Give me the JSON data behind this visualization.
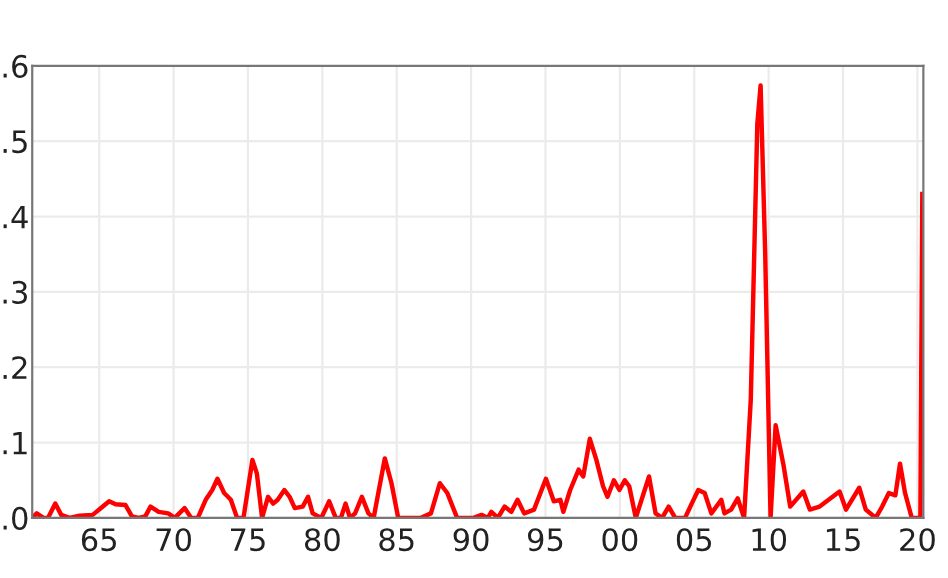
{
  "chart_data": {
    "type": "line",
    "grid": true,
    "line_style": "solid",
    "marker": "none",
    "xlim": [
      1960.5,
      2020.4
    ],
    "ylim": [
      0,
      0.6
    ],
    "xticks": [
      {
        "value": 1965,
        "label": "65"
      },
      {
        "value": 1970,
        "label": "70"
      },
      {
        "value": 1975,
        "label": "75"
      },
      {
        "value": 1980,
        "label": "80"
      },
      {
        "value": 1985,
        "label": "85"
      },
      {
        "value": 1990,
        "label": "90"
      },
      {
        "value": 1995,
        "label": "95"
      },
      {
        "value": 2000,
        "label": "00"
      },
      {
        "value": 2005,
        "label": "05"
      },
      {
        "value": 2010,
        "label": "10"
      },
      {
        "value": 2015,
        "label": "15"
      },
      {
        "value": 2020,
        "label": "20"
      }
    ],
    "yticks": [
      {
        "value": 0,
        "label": ".0"
      },
      {
        "value": 0.1,
        "label": ".1"
      },
      {
        "value": 0.2,
        "label": ".2"
      },
      {
        "value": 0.3,
        "label": ".3"
      },
      {
        "value": 0.4,
        "label": ".4"
      },
      {
        "value": 0.5,
        "label": ".5"
      },
      {
        "value": 0.6,
        "label": ".6"
      }
    ],
    "series": [
      {
        "color": "#ff0000",
        "x": [
          1960.5,
          1960.8,
          1961.25,
          1961.56,
          1962.05,
          1962.45,
          1963.0,
          1963.68,
          1964.56,
          1965.0,
          1965.67,
          1966.1,
          1966.77,
          1967.2,
          1967.65,
          1968.1,
          1968.45,
          1969.0,
          1969.64,
          1970.08,
          1970.74,
          1971.19,
          1971.63,
          1972.16,
          1972.6,
          1972.95,
          1973.4,
          1973.85,
          1974.27,
          1974.7,
          1975.3,
          1975.6,
          1975.95,
          1976.35,
          1976.7,
          1977.0,
          1977.45,
          1977.8,
          1978.15,
          1978.68,
          1979.04,
          1979.35,
          1979.93,
          1980.46,
          1980.9,
          1981.25,
          1981.56,
          1981.86,
          1982.2,
          1982.66,
          1983.1,
          1983.45,
          1984.2,
          1984.65,
          1985.1,
          1986.63,
          1987.3,
          1987.9,
          1988.4,
          1989.06,
          1990.17,
          1990.7,
          1991.13,
          1991.36,
          1991.8,
          1992.25,
          1992.7,
          1993.12,
          1993.57,
          1994.23,
          1995.03,
          1995.56,
          1996.0,
          1996.2,
          1996.66,
          1997.23,
          1997.54,
          1997.98,
          1998.42,
          1998.87,
          1999.17,
          1999.6,
          1999.97,
          2000.33,
          2000.63,
          2001.07,
          2001.96,
          2002.4,
          2002.84,
          2003.28,
          2003.72,
          2004.38,
          2004.83,
          2005.27,
          2005.7,
          2006.15,
          2006.82,
          2007.03,
          2007.48,
          2007.92,
          2008.35,
          2008.8,
          2009.24,
          2009.46,
          2009.77,
          2010.13,
          2010.47,
          2011.0,
          2011.45,
          2012.33,
          2012.77,
          2013.43,
          2014.77,
          2015.2,
          2016.09,
          2016.53,
          2017.2,
          2017.63,
          2018.08,
          2018.52,
          2018.83,
          2019.17,
          2019.62,
          2020.2,
          2020.33
        ],
        "values": [
          0,
          0.006,
          0,
          0,
          0.019,
          0.004,
          0,
          0.003,
          0.004,
          0.011,
          0.022,
          0.018,
          0.017,
          0.002,
          0,
          0.002,
          0.015,
          0.008,
          0.006,
          0,
          0.013,
          0,
          0,
          0.024,
          0.037,
          0.052,
          0.033,
          0.024,
          0,
          0,
          0.077,
          0.059,
          0,
          0.028,
          0.019,
          0.024,
          0.037,
          0.028,
          0.013,
          0.015,
          0.028,
          0.006,
          0,
          0.022,
          0,
          0,
          0.019,
          0,
          0.006,
          0.028,
          0.006,
          0,
          0.079,
          0.046,
          0,
          0,
          0.006,
          0.046,
          0.033,
          0,
          0,
          0.004,
          0,
          0.008,
          0,
          0.015,
          0.008,
          0.024,
          0.006,
          0.011,
          0.052,
          0.022,
          0.024,
          0.008,
          0.037,
          0.064,
          0.055,
          0.105,
          0.077,
          0.042,
          0.028,
          0.05,
          0.037,
          0.05,
          0.042,
          0,
          0.055,
          0.006,
          0,
          0.015,
          0,
          0,
          0.019,
          0.037,
          0.033,
          0.006,
          0.024,
          0.006,
          0.011,
          0.026,
          0,
          0.157,
          0.523,
          0.574,
          0.35,
          0,
          0.123,
          0.07,
          0.015,
          0.035,
          0.011,
          0.015,
          0.035,
          0.011,
          0.04,
          0.011,
          0,
          0.015,
          0.033,
          0.03,
          0.072,
          0.033,
          0,
          0,
          0.43
        ]
      }
    ]
  }
}
